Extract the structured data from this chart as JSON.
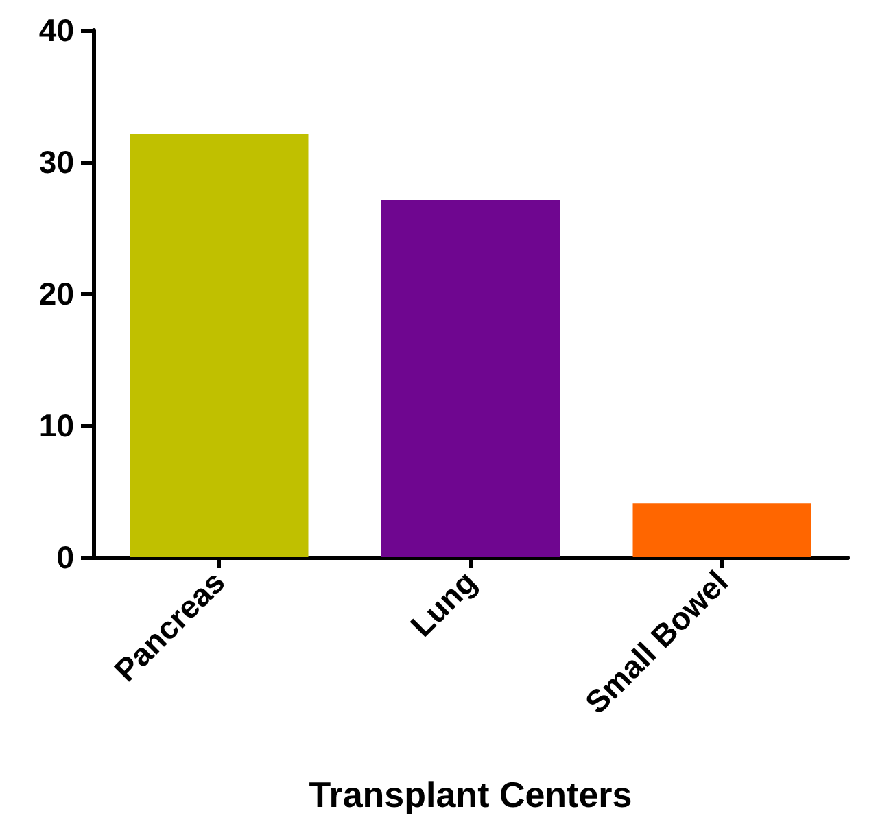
{
  "chart_data": {
    "type": "bar",
    "xlabel": "Transplant Centers",
    "categories": [
      "Pancreas",
      "Lung",
      "Small Bowel"
    ],
    "values": [
      32.1,
      27.1,
      4.1
    ],
    "colors": [
      "#c0c000",
      "#6f0690",
      "#ff6600"
    ],
    "ylim": [
      0,
      40
    ],
    "yticks": [
      0,
      10,
      20,
      30,
      40
    ]
  }
}
